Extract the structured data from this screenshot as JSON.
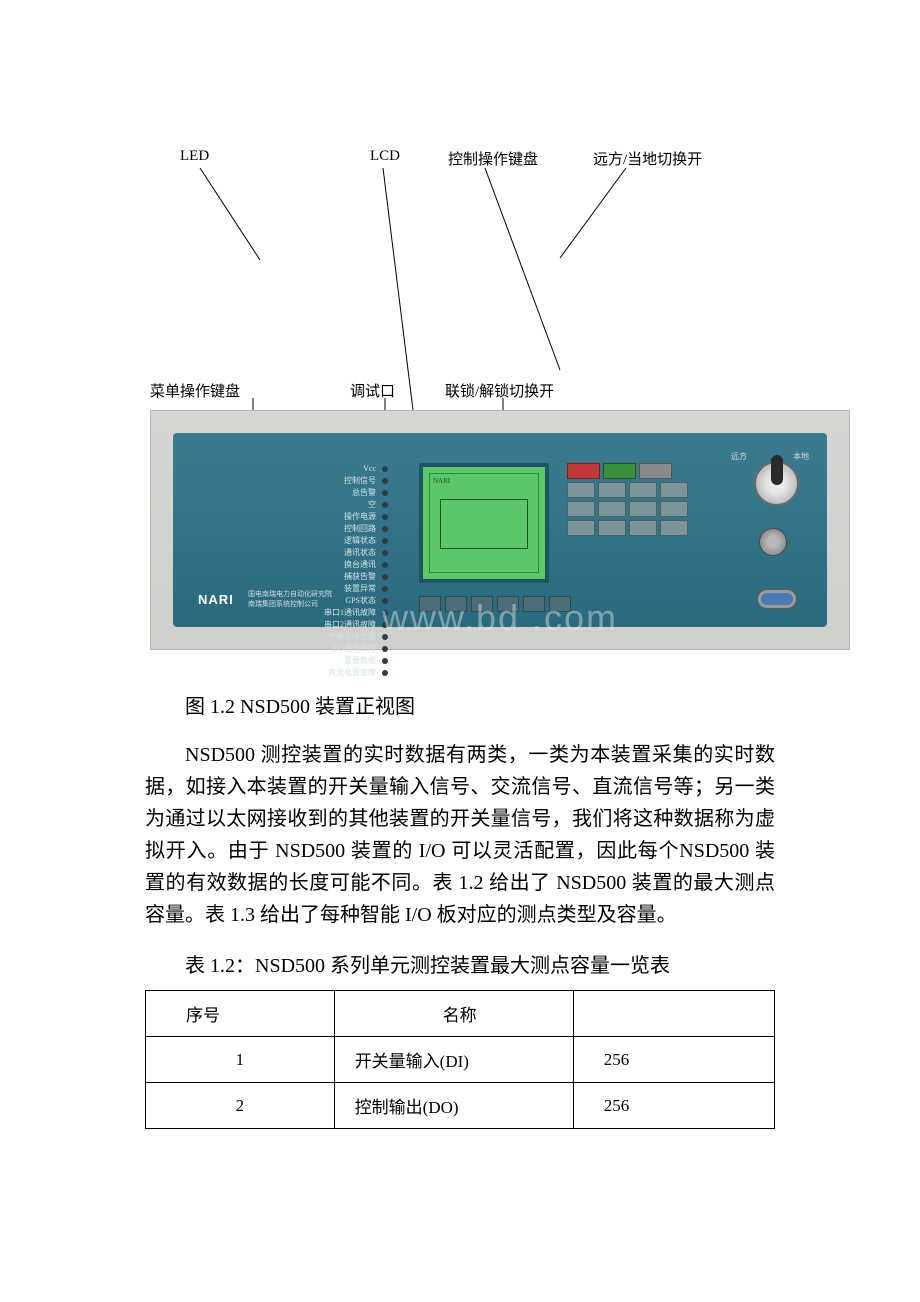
{
  "diagram": {
    "top_labels": {
      "led": "LED",
      "lcd": "LCD",
      "control_keypad": "控制操作键盘",
      "remote_local": "远方/当地切换开"
    },
    "bottom_labels": {
      "menu_keypad": "菜单操作键盘",
      "debug_port": "调试口",
      "lock_switch": "联锁/解锁切换开"
    },
    "line_color": "#000000",
    "line_width": 1
  },
  "device": {
    "frame_bg": "#d5d6d3",
    "panel_bg": "#3a7b8f",
    "lcd_bg": "#5cc66a",
    "led_items": [
      "Vcc",
      "控制信号",
      "总告警",
      "空",
      "操作电源",
      "控制回路",
      "逻辑状态",
      "通讯状态",
      "换台通讯",
      "捕获告警",
      "装置异常",
      "GPS状态",
      "串口1通讯故障",
      "串口2通讯故障",
      "传输故障告警",
      "I/O通讯故障",
      "重要数据",
      "直流电源故障"
    ],
    "nari": "NARI",
    "nari_sub1": "国电南瑞电力自动化研究院",
    "nari_sub2": "南瑞集团系统控制公司",
    "switch_left": "远方",
    "switch_right": "本地",
    "watermark": "www.bd   .com"
  },
  "caption": "图 1.2 NSD500 装置正视图",
  "paragraph": "NSD500 测控装置的实时数据有两类，一类为本装置采集的实时数据，如接入本装置的开关量输入信号、交流信号、直流信号等；另一类为通过以太网接收到的其他装置的开关量信号，我们将这种数据称为虚拟开入。由于 NSD500 装置的 I/O 可以灵活配置，因此每个NSD500 装置的有效数据的长度可能不同。表 1.2 给出了 NSD500 装置的最大测点容量。表 1.3 给出了每种智能 I/O 板对应的测点类型及容量。",
  "table_title": "表 1.2：NSD500 系列单元测控装置最大测点容量一览表",
  "table": {
    "columns": [
      "序号",
      "名称",
      ""
    ],
    "rows": [
      [
        "1",
        "开关量输入(DI)",
        "256"
      ],
      [
        "2",
        "控制输出(DO)",
        "256"
      ]
    ]
  }
}
